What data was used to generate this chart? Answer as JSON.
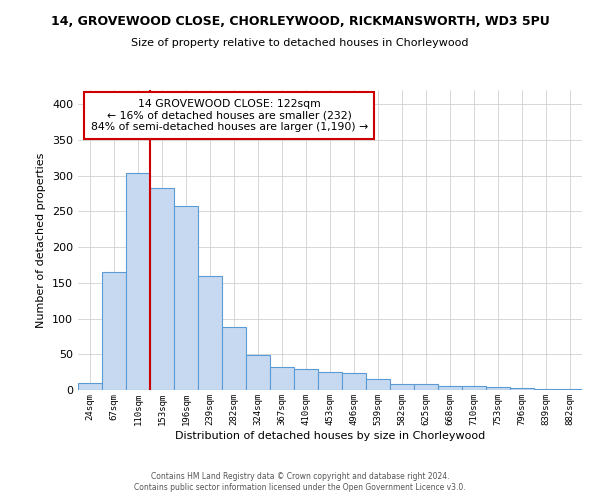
{
  "title": "14, GROVEWOOD CLOSE, CHORLEYWOOD, RICKMANSWORTH, WD3 5PU",
  "subtitle": "Size of property relative to detached houses in Chorleywood",
  "xlabel": "Distribution of detached houses by size in Chorleywood",
  "ylabel": "Number of detached properties",
  "bar_labels": [
    "24sqm",
    "67sqm",
    "110sqm",
    "153sqm",
    "196sqm",
    "239sqm",
    "282sqm",
    "324sqm",
    "367sqm",
    "410sqm",
    "453sqm",
    "496sqm",
    "539sqm",
    "582sqm",
    "625sqm",
    "668sqm",
    "710sqm",
    "753sqm",
    "796sqm",
    "839sqm",
    "882sqm"
  ],
  "bar_values": [
    10,
    165,
    304,
    283,
    258,
    159,
    88,
    49,
    32,
    29,
    25,
    24,
    16,
    8,
    8,
    6,
    5,
    4,
    3,
    2,
    2
  ],
  "bar_color": "#c6d9f0",
  "bar_edge_color": "#5b9bd5",
  "vline_color": "#cc0000",
  "ylim": [
    0,
    420
  ],
  "yticks": [
    0,
    50,
    100,
    150,
    200,
    250,
    300,
    350,
    400
  ],
  "annotation_title": "14 GROVEWOOD CLOSE: 122sqm",
  "annotation_line1": "← 16% of detached houses are smaller (232)",
  "annotation_line2": "84% of semi-detached houses are larger (1,190) →",
  "annotation_box_color": "#ffffff",
  "annotation_box_edge": "#cc0000",
  "footer1": "Contains HM Land Registry data © Crown copyright and database right 2024.",
  "footer2": "Contains public sector information licensed under the Open Government Licence v3.0.",
  "bg_color": "#ffffff",
  "grid_color": "#c8c8c8"
}
